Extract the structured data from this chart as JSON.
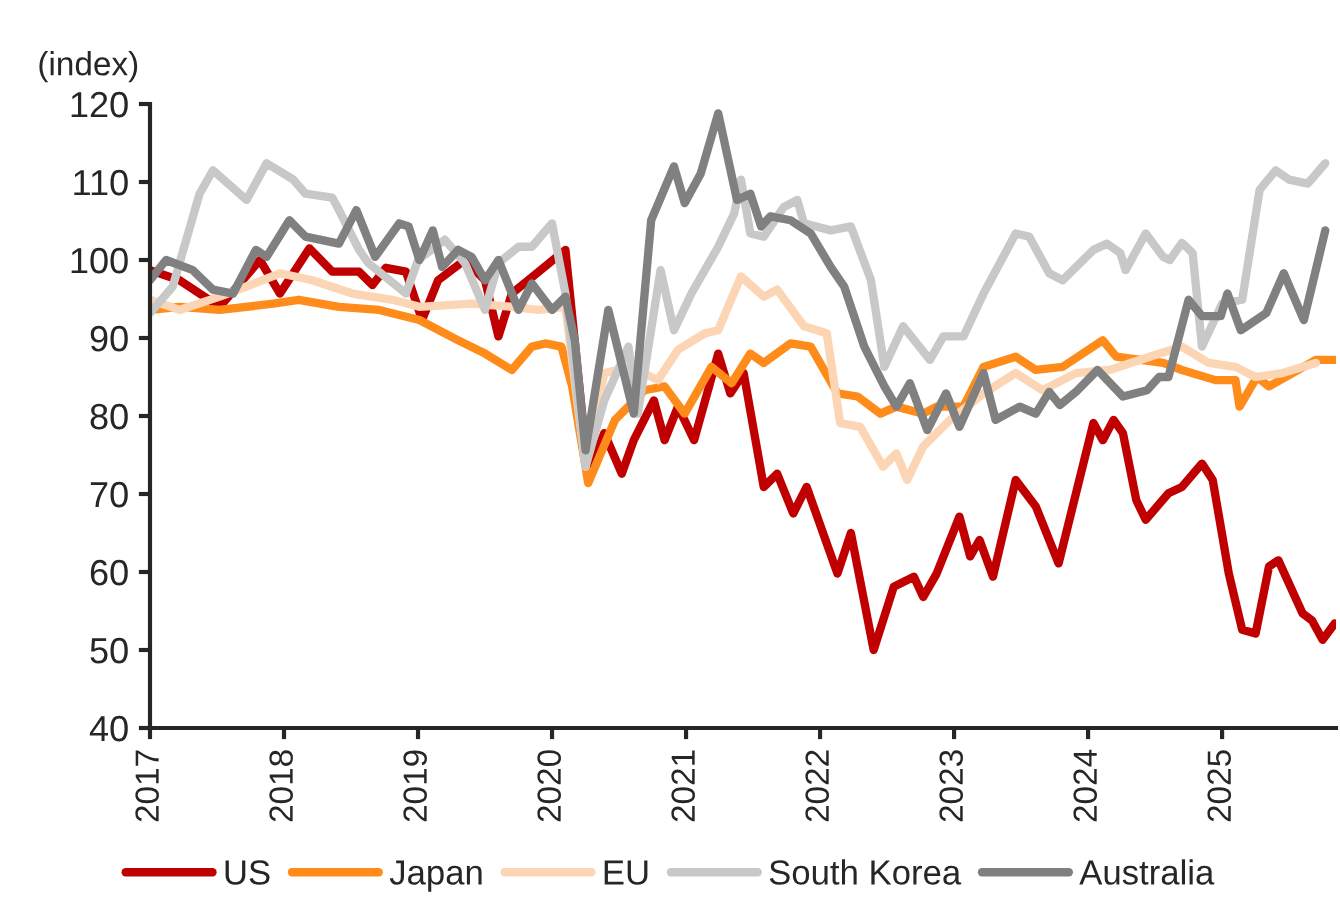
{
  "chart_data": {
    "type": "line",
    "ylabel": "(index)",
    "xlim": [
      2017,
      2025.85
    ],
    "xticks": [
      2017,
      2018,
      2019,
      2020,
      2021,
      2022,
      2023,
      2024,
      2025
    ],
    "ylim": [
      40,
      120
    ],
    "yticks": [
      40,
      50,
      60,
      70,
      80,
      90,
      100,
      110,
      120
    ],
    "grid": false,
    "legend": "bottom",
    "marker": "none",
    "line_style": "solid",
    "series": [
      {
        "name": "US",
        "color": "#c00000",
        "x": [
          2017.0,
          2017.22,
          2017.52,
          2017.82,
          2017.97,
          2018.19,
          2018.36,
          2018.56,
          2018.66,
          2018.76,
          2018.91,
          2019.03,
          2019.15,
          2019.35,
          2019.5,
          2019.6,
          2019.7,
          2019.9,
          2020.1,
          2020.27,
          2020.39,
          2020.52,
          2020.61,
          2020.76,
          2020.84,
          2020.94,
          2021.06,
          2021.24,
          2021.33,
          2021.43,
          2021.58,
          2021.68,
          2021.8,
          2021.9,
          2022.13,
          2022.23,
          2022.4,
          2022.55,
          2022.7,
          2022.77,
          2022.87,
          2023.04,
          2023.12,
          2023.19,
          2023.29,
          2023.46,
          2023.61,
          2023.78,
          2024.04,
          2024.11,
          2024.19,
          2024.26,
          2024.36,
          2024.43,
          2024.6,
          2024.7,
          2024.85,
          2024.93,
          2025.05,
          2025.15,
          2025.25,
          2025.35,
          2025.42,
          2025.6,
          2025.67,
          2025.75,
          2025.84
        ],
        "values": [
          98.7,
          97.4,
          94,
          100,
          95.7,
          101.5,
          98.5,
          98.5,
          96.8,
          99,
          98.5,
          92.3,
          97.4,
          100,
          97.4,
          90.2,
          95.7,
          98.5,
          101.3,
          72.6,
          77.8,
          72.6,
          76.9,
          82,
          76.9,
          81.2,
          76.9,
          88,
          82.9,
          85.5,
          70.9,
          72.6,
          67.5,
          70.9,
          59.8,
          65,
          50,
          58.1,
          59.4,
          56.8,
          59.8,
          67.1,
          62,
          64.1,
          59.4,
          71.8,
          68.4,
          61.1,
          79.1,
          76.9,
          79.5,
          77.8,
          69.2,
          66.7,
          70.1,
          70.9,
          73.9,
          71.8,
          59.8,
          52.6,
          52.1,
          60.7,
          61.5,
          54.7,
          53.8,
          51.3,
          53.4
        ]
      },
      {
        "name": "Japan",
        "color": "#ff8c1a",
        "x": [
          2017.0,
          2017.22,
          2017.52,
          2017.92,
          2018.11,
          2018.41,
          2018.71,
          2019.01,
          2019.3,
          2019.5,
          2019.7,
          2019.85,
          2019.95,
          2020.07,
          2020.15,
          2020.27,
          2020.47,
          2020.69,
          2020.84,
          2020.99,
          2021.19,
          2021.34,
          2021.48,
          2021.58,
          2021.78,
          2021.93,
          2022.13,
          2022.28,
          2022.45,
          2022.57,
          2022.77,
          2022.87,
          2023.07,
          2023.22,
          2023.46,
          2023.61,
          2023.81,
          2024.11,
          2024.21,
          2024.56,
          2024.7,
          2024.95,
          2025.1,
          2025.13,
          2025.26,
          2025.35,
          2025.7,
          2025.84
        ],
        "values": [
          93.6,
          94,
          93.6,
          94.4,
          94.9,
          94,
          93.6,
          92.3,
          89.7,
          88,
          85.9,
          88.9,
          89.3,
          88.9,
          83.8,
          71.4,
          79.5,
          83.3,
          83.8,
          80.3,
          86.3,
          84.2,
          88,
          86.8,
          89.3,
          88.9,
          82.9,
          82.5,
          80.3,
          81.2,
          80.3,
          81.2,
          81.2,
          86.3,
          87.6,
          85.9,
          86.3,
          89.7,
          87.6,
          86.8,
          85.9,
          84.6,
          84.6,
          81.2,
          85,
          83.8,
          87.2,
          87.2
        ]
      },
      {
        "name": "EU",
        "color": "#fcd5b4",
        "x": [
          2017.0,
          2017.22,
          2017.52,
          2017.72,
          2017.97,
          2018.21,
          2018.51,
          2018.81,
          2019.01,
          2019.4,
          2019.7,
          2019.9,
          2020.1,
          2020.25,
          2020.39,
          2020.59,
          2020.79,
          2020.94,
          2021.14,
          2021.24,
          2021.41,
          2021.58,
          2021.68,
          2021.88,
          2022.05,
          2022.15,
          2022.3,
          2022.47,
          2022.57,
          2022.65,
          2022.77,
          2022.97,
          2023.22,
          2023.46,
          2023.66,
          2023.91,
          2024.16,
          2024.46,
          2024.7,
          2024.9,
          2025.1,
          2025.25,
          2025.45,
          2025.7
        ],
        "values": [
          94.9,
          93.6,
          95.3,
          96.6,
          98.3,
          97.4,
          95.7,
          94.9,
          94,
          94.4,
          94,
          93.6,
          94,
          73.5,
          85.5,
          86.3,
          84.6,
          88.5,
          90.6,
          91,
          97.9,
          95.3,
          96.2,
          91.5,
          90.6,
          79.1,
          78.6,
          73.5,
          75.2,
          71.8,
          76.1,
          79.5,
          82.9,
          85.5,
          83.3,
          85.5,
          85.9,
          87.6,
          88.9,
          86.8,
          86.3,
          85,
          85.5,
          86.8
        ]
      },
      {
        "name": "South Korea",
        "color": "#c8c8c8",
        "x": [
          2017.0,
          2017.17,
          2017.37,
          2017.47,
          2017.72,
          2017.87,
          2018.07,
          2018.16,
          2018.36,
          2018.41,
          2018.56,
          2018.63,
          2018.91,
          2019.0,
          2019.2,
          2019.35,
          2019.5,
          2019.6,
          2019.75,
          2019.85,
          2020.0,
          2020.1,
          2020.25,
          2020.39,
          2020.57,
          2020.64,
          2020.81,
          2020.91,
          2021.04,
          2021.24,
          2021.36,
          2021.41,
          2021.48,
          2021.58,
          2021.73,
          2021.83,
          2021.88,
          2022.08,
          2022.23,
          2022.38,
          2022.48,
          2022.62,
          2022.82,
          2022.92,
          2023.07,
          2023.22,
          2023.46,
          2023.56,
          2023.71,
          2023.81,
          2024.04,
          2024.14,
          2024.24,
          2024.28,
          2024.43,
          2024.56,
          2024.61,
          2024.7,
          2024.78,
          2024.85,
          2025.0,
          2025.15,
          2025.28,
          2025.4,
          2025.5,
          2025.64,
          2025.77
        ],
        "values": [
          93.2,
          96.6,
          108.5,
          111.5,
          107.7,
          112.4,
          110.3,
          108.5,
          108,
          106.4,
          101.3,
          99.6,
          95.7,
          100,
          102.6,
          99.6,
          93.6,
          99.6,
          101.7,
          101.7,
          104.7,
          95.7,
          73.5,
          82,
          88.9,
          80.3,
          98.7,
          91,
          95.7,
          101.7,
          106,
          110.3,
          103.4,
          103,
          106.8,
          107.7,
          104.7,
          103.8,
          104.3,
          97.4,
          86.3,
          91.5,
          87.2,
          90.2,
          90.2,
          95.7,
          103.4,
          103,
          98.3,
          97.4,
          101.3,
          102.1,
          100.9,
          98.7,
          103.4,
          100.4,
          100,
          102.2,
          100.9,
          88.9,
          94.4,
          94.9,
          109,
          111.5,
          110.3,
          109.8,
          112.4
        ]
      },
      {
        "name": "Australia",
        "color": "#808080",
        "x": [
          2017.0,
          2017.12,
          2017.32,
          2017.47,
          2017.62,
          2017.79,
          2017.87,
          2018.04,
          2018.16,
          2018.41,
          2018.54,
          2018.68,
          2018.86,
          2018.93,
          2019.01,
          2019.11,
          2019.18,
          2019.3,
          2019.4,
          2019.5,
          2019.6,
          2019.75,
          2019.85,
          2020.0,
          2020.1,
          2020.17,
          2020.25,
          2020.42,
          2020.61,
          2020.74,
          2020.91,
          2020.99,
          2021.11,
          2021.24,
          2021.38,
          2021.48,
          2021.56,
          2021.63,
          2021.78,
          2021.93,
          2022.08,
          2022.18,
          2022.33,
          2022.48,
          2022.57,
          2022.67,
          2022.8,
          2022.94,
          2023.04,
          2023.22,
          2023.31,
          2023.49,
          2023.61,
          2023.71,
          2023.79,
          2023.91,
          2024.07,
          2024.26,
          2024.44,
          2024.53,
          2024.6,
          2024.75,
          2024.85,
          2024.99,
          2025.04,
          2025.14,
          2025.33,
          2025.46,
          2025.61,
          2025.77
        ],
        "values": [
          97.4,
          100,
          98.7,
          96.2,
          95.7,
          101.3,
          100.4,
          105.1,
          103,
          102.1,
          106.4,
          100.4,
          104.7,
          104.3,
          100,
          103.8,
          99.1,
          101.3,
          100.4,
          97.4,
          100,
          93.6,
          97,
          93.6,
          95.3,
          89.7,
          75.6,
          93.6,
          80.3,
          105.1,
          112,
          107.3,
          111.1,
          118.8,
          107.7,
          108.5,
          104.3,
          105.6,
          105.1,
          103.4,
          99.1,
          96.6,
          88.9,
          83.8,
          81.2,
          84.2,
          78.2,
          82.9,
          78.6,
          85.5,
          79.5,
          81.2,
          80.3,
          83.1,
          81.4,
          83.1,
          85.9,
          82.5,
          83.3,
          85,
          85,
          94.9,
          92.8,
          92.8,
          95.7,
          91,
          93.2,
          98.3,
          92.3,
          103.8
        ]
      }
    ]
  }
}
